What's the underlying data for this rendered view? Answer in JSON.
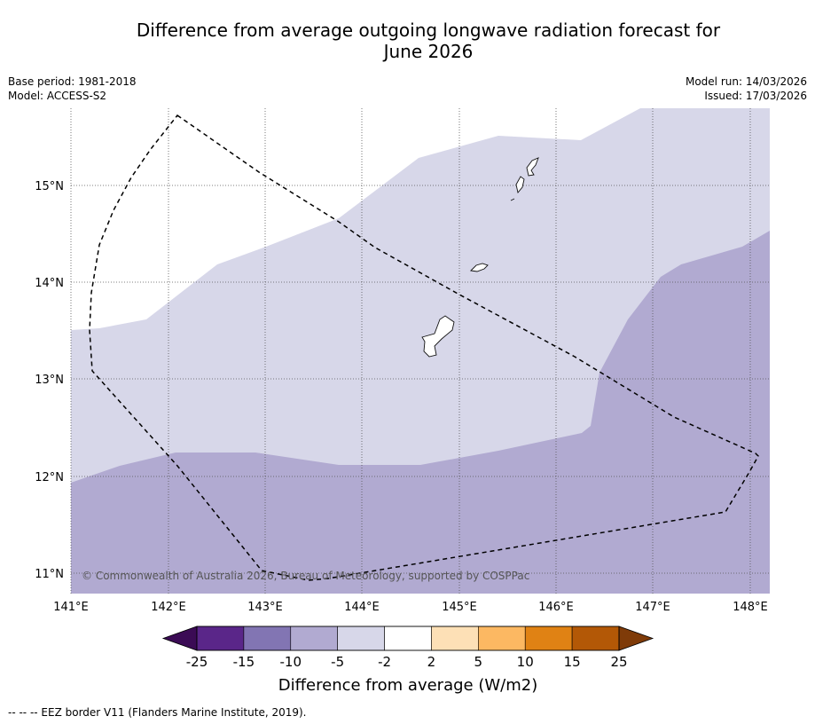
{
  "title": {
    "line1": "Difference from average outgoing longwave radiation forecast for",
    "line2": "June 2026"
  },
  "meta_left": {
    "base_period": "Base period: 1981-2018",
    "model": "Model: ACCESS-S2"
  },
  "meta_right": {
    "model_run": "Model run: 14/03/2026",
    "issued": "Issued: 17/03/2026"
  },
  "map": {
    "lat_labels": [
      "15°N",
      "14°N",
      "13°N",
      "12°N",
      "11°N"
    ],
    "lon_labels": [
      "141°E",
      "142°E",
      "143°E",
      "144°E",
      "145°E",
      "146°E",
      "147°E",
      "148°E"
    ],
    "copyright": "© Commonwealth of Australia 2026, Bureau of Meteorology, supported by COSPPac",
    "colors": {
      "band_neg5_neg2": "#d7d7e9",
      "band_neg10_neg5": "#b1aad1"
    }
  },
  "colorbar": {
    "label": "Difference from average (W/m2)",
    "ticks": [
      "-25",
      "-15",
      "-10",
      "-5",
      "-2",
      "2",
      "5",
      "10",
      "15",
      "25"
    ],
    "colors": [
      "#5a2689",
      "#8275b3",
      "#b1aad1",
      "#d7d7e9",
      "#ffffff",
      "#fde0b6",
      "#fcb862",
      "#e08214",
      "#b35806"
    ],
    "under_color": "#3b0b55",
    "over_color": "#7f3b08"
  },
  "footer": {
    "legend": "--  --  -- EEZ border V11 (Flanders Marine Institute, 2019)."
  }
}
